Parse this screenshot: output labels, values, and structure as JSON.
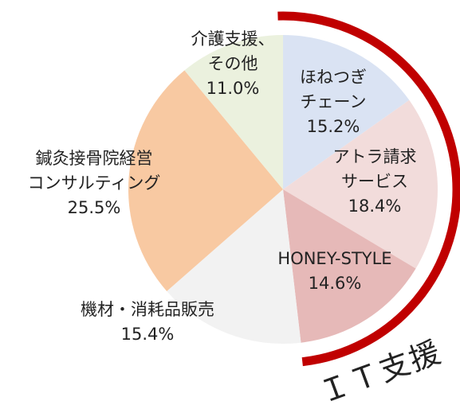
{
  "chart_data": {
    "type": "pie",
    "categories": [
      [
        "ほねつぎ",
        "チェーン"
      ],
      [
        "アトラ請求",
        "サービス"
      ],
      [
        "HONEY-STYLE"
      ],
      [
        "機材・消耗品販売"
      ],
      [
        "鍼灸接骨院経営",
        "コンサルティング"
      ],
      [
        "介護支援、",
        "その他"
      ]
    ],
    "values": [
      15.2,
      18.4,
      14.6,
      15.4,
      25.5,
      11.0
    ],
    "value_labels": [
      "15.2%",
      "18.4%",
      "14.6%",
      "15.4%",
      "25.5%",
      "11.0%"
    ],
    "colors": [
      "#dae3f3",
      "#f2dcdb",
      "#e6b9b8",
      "#f2f2f2",
      "#f8c9a2",
      "#ebf1de"
    ],
    "annotation": {
      "text": "ＩＴ支援",
      "color": "#c00000"
    }
  }
}
